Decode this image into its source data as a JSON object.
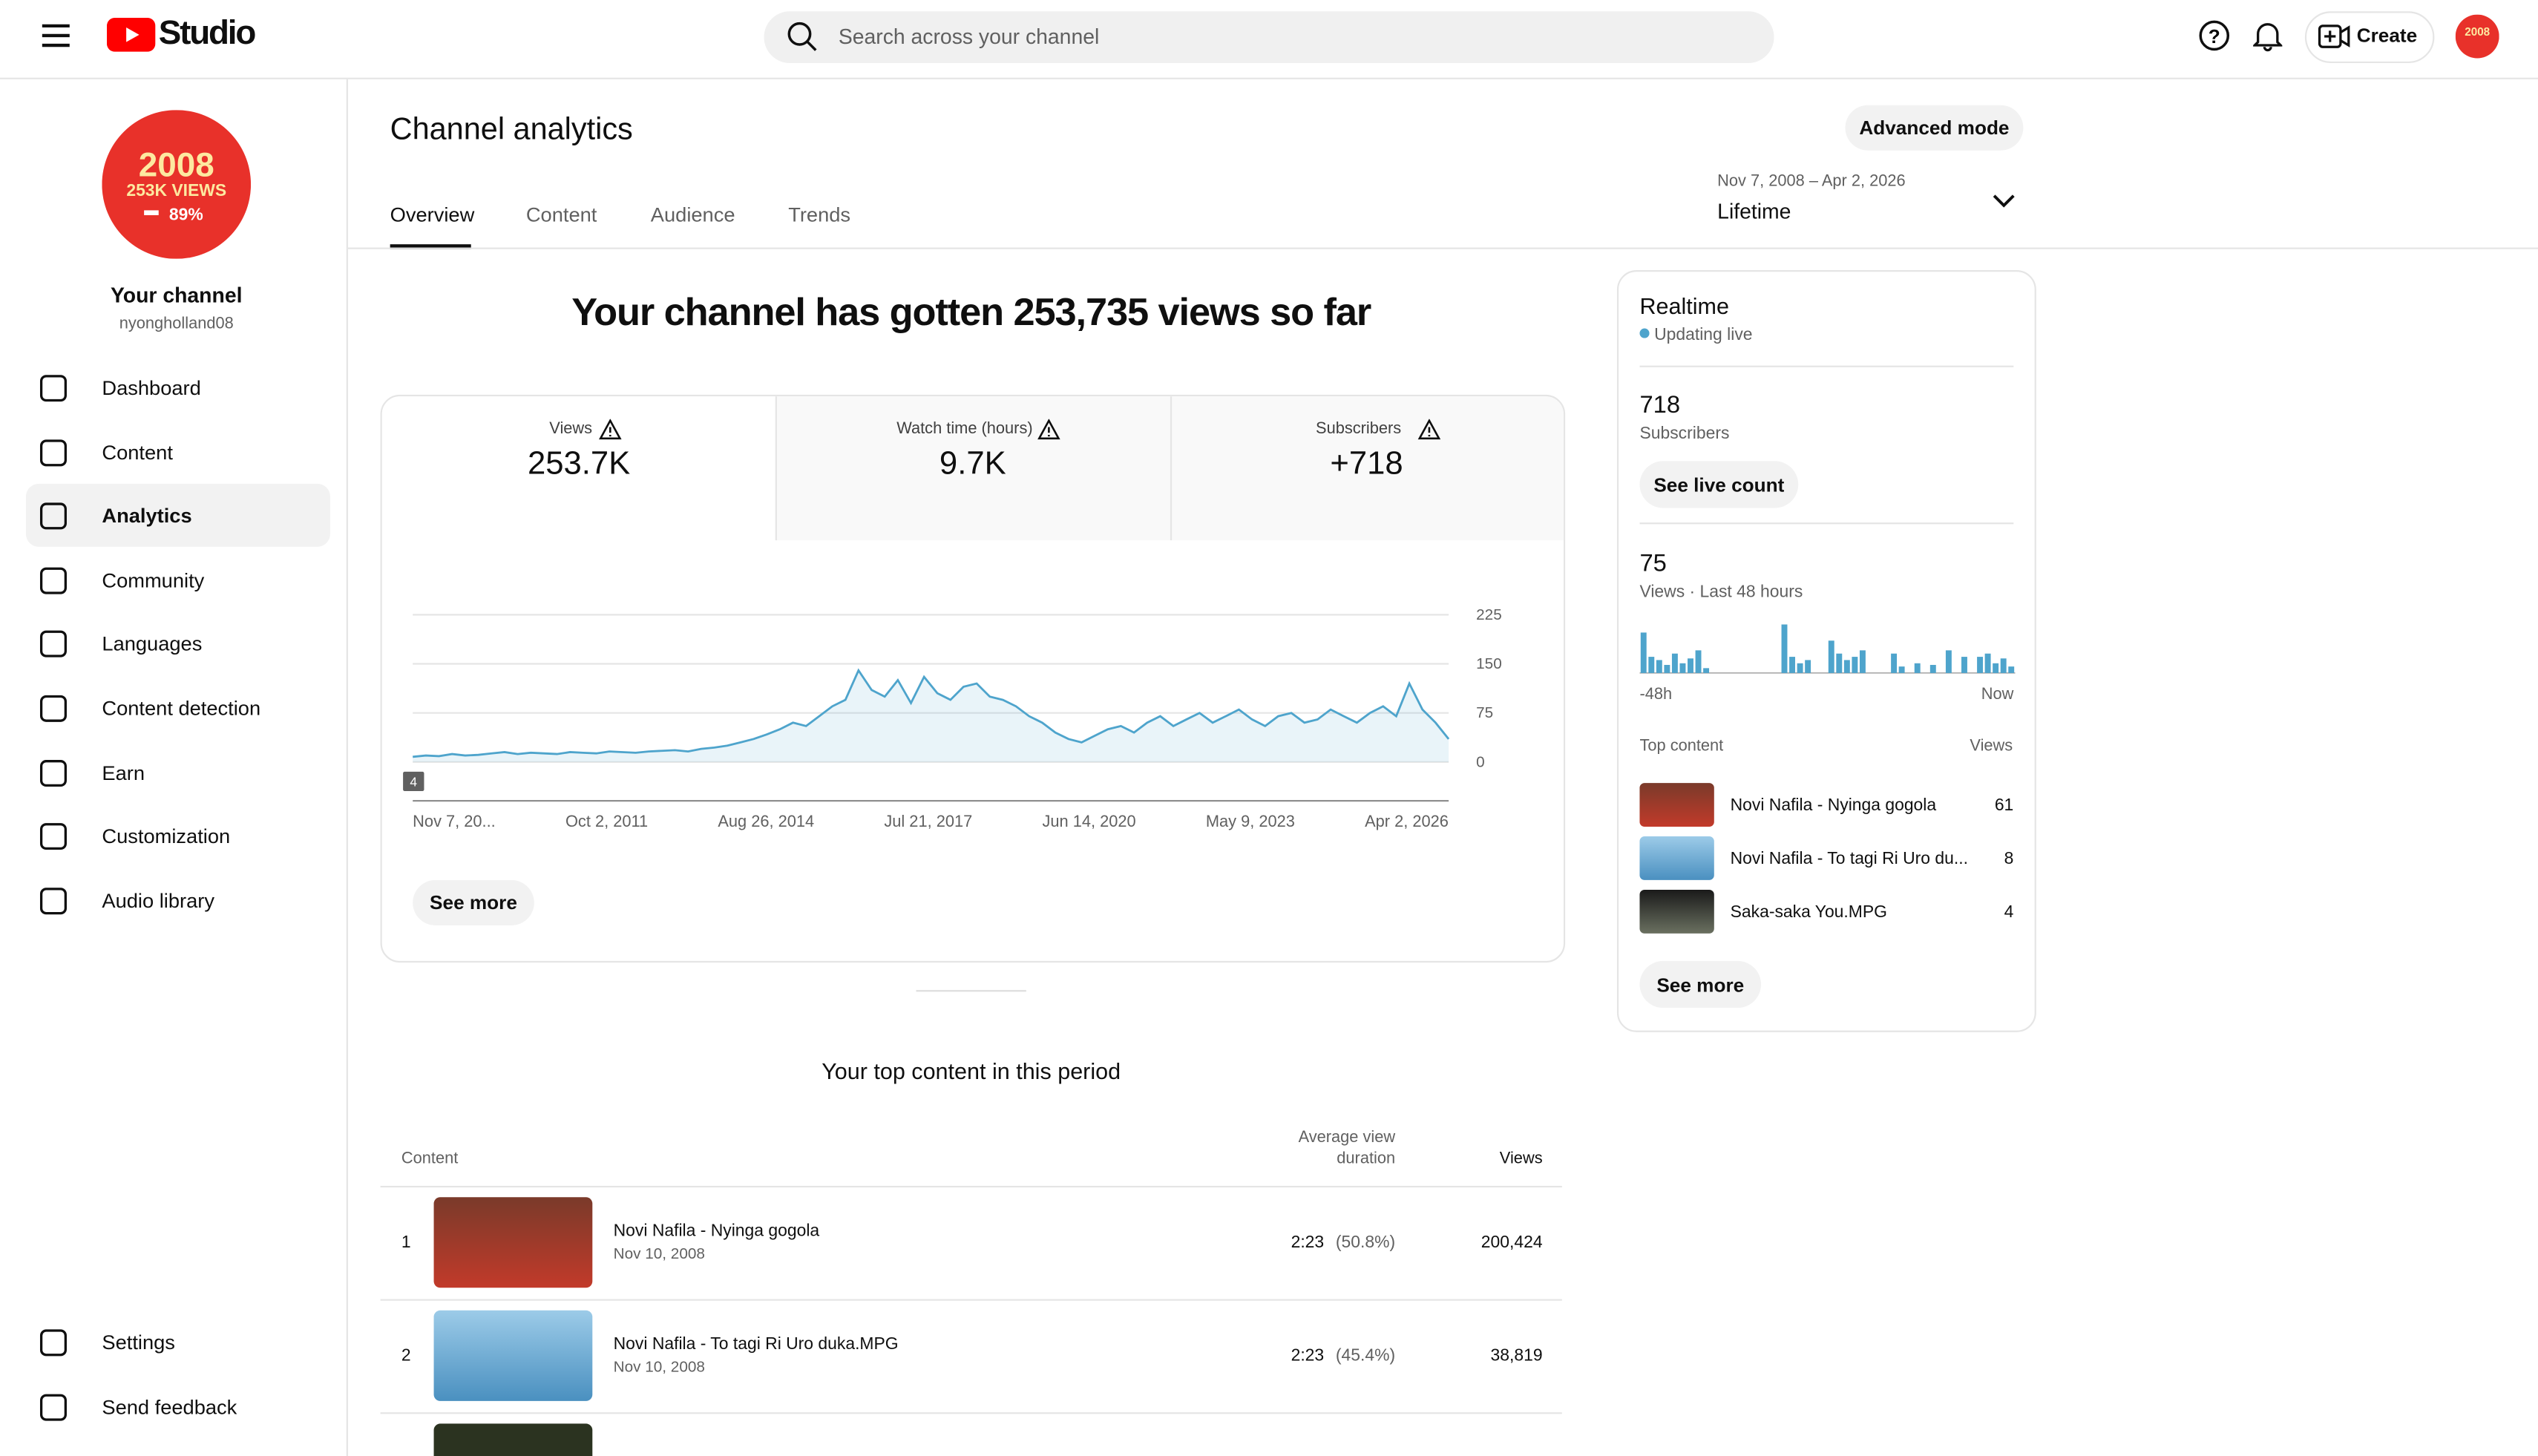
{
  "header": {
    "brand": "Studio",
    "search_placeholder": "Search across your channel",
    "create": "Create"
  },
  "sidebar": {
    "avatar": {
      "year": "2008",
      "views": "253K VIEWS",
      "percent": "89%"
    },
    "channel_name": "Your channel",
    "handle": "nyongholland08",
    "nav": [
      "Dashboard",
      "Content",
      "Analytics",
      "Community",
      "Languages",
      "Content detection",
      "Earn",
      "Customization",
      "Audio library"
    ],
    "footer_nav": [
      "Settings",
      "Send feedback"
    ]
  },
  "page": {
    "title": "Channel analytics",
    "advanced_mode": "Advanced mode",
    "tabs": [
      "Overview",
      "Content",
      "Audience",
      "Trends"
    ],
    "date_range": "Nov 7, 2008 – Apr 2, 2026",
    "period": "Lifetime"
  },
  "summary": {
    "headline": "Your channel has gotten 253,735 views so far",
    "metrics": [
      {
        "label": "Views",
        "value": "253.7K"
      },
      {
        "label": "Watch time (hours)",
        "value": "9.7K"
      },
      {
        "label": "Subscribers",
        "value": "+718"
      }
    ]
  },
  "views_chart": {
    "type": "line",
    "color": "#4ea4cc",
    "ylim": [
      0,
      225
    ],
    "yticks": [
      0,
      75,
      150,
      225
    ],
    "x_labels": [
      "Nov 7, 20...",
      "Oct 2, 2011",
      "Aug 26, 2014",
      "Jul 21, 2017",
      "Jun 14, 2020",
      "May 9, 2023",
      "Apr 2, 2026"
    ],
    "badge": "4",
    "values": [
      8,
      10,
      9,
      12,
      10,
      11,
      13,
      15,
      12,
      14,
      13,
      12,
      15,
      14,
      13,
      16,
      15,
      14,
      16,
      17,
      18,
      16,
      20,
      22,
      25,
      30,
      35,
      42,
      50,
      60,
      55,
      70,
      85,
      95,
      140,
      110,
      100,
      125,
      90,
      130,
      105,
      95,
      115,
      120,
      100,
      95,
      85,
      70,
      60,
      45,
      35,
      30,
      40,
      50,
      55,
      45,
      60,
      70,
      55,
      65,
      75,
      60,
      70,
      80,
      65,
      55,
      70,
      75,
      60,
      65,
      80,
      70,
      60,
      75,
      85,
      70,
      120,
      80,
      60,
      35
    ],
    "see_more": "See more"
  },
  "realtime": {
    "title": "Realtime",
    "status": "Updating live",
    "subscribers": "718",
    "subscribers_label": "Subscribers",
    "live_count": "See live count",
    "views": "75",
    "views_label": "Views · Last 48 hours",
    "bars": [
      25,
      10,
      8,
      5,
      12,
      6,
      9,
      14,
      3,
      0,
      0,
      0,
      0,
      0,
      0,
      0,
      0,
      0,
      30,
      10,
      6,
      8,
      0,
      0,
      20,
      12,
      8,
      10,
      14,
      0,
      0,
      0,
      12,
      4,
      0,
      6,
      0,
      5,
      0,
      14,
      0,
      10,
      0,
      10,
      12,
      6,
      9,
      4
    ],
    "start_label": "-48h",
    "end_label": "Now",
    "top_content_label": "Top content",
    "views_header": "Views",
    "top_content": [
      {
        "title": "Novi Nafila - Nyinga gogola",
        "views": "61"
      },
      {
        "title": "Novi Nafila - To tagi Ri Uro du...",
        "views": "8"
      },
      {
        "title": "Saka-saka You.MPG",
        "views": "4"
      }
    ],
    "see_more": "See more"
  },
  "top_content": {
    "title": "Your top content in this period",
    "headers": [
      "Content",
      "Average view duration",
      "Views"
    ],
    "rows": [
      [
        "1",
        "Novi Nafila - Nyinga gogola",
        "Nov 10, 2008",
        "2:23",
        "(50.8%)",
        "200,424"
      ],
      [
        "2",
        "Novi Nafila - To tagi Ri Uro duka.MPG",
        "Nov 10, 2008",
        "2:23",
        "(45.4%)",
        "38,819"
      ]
    ]
  }
}
